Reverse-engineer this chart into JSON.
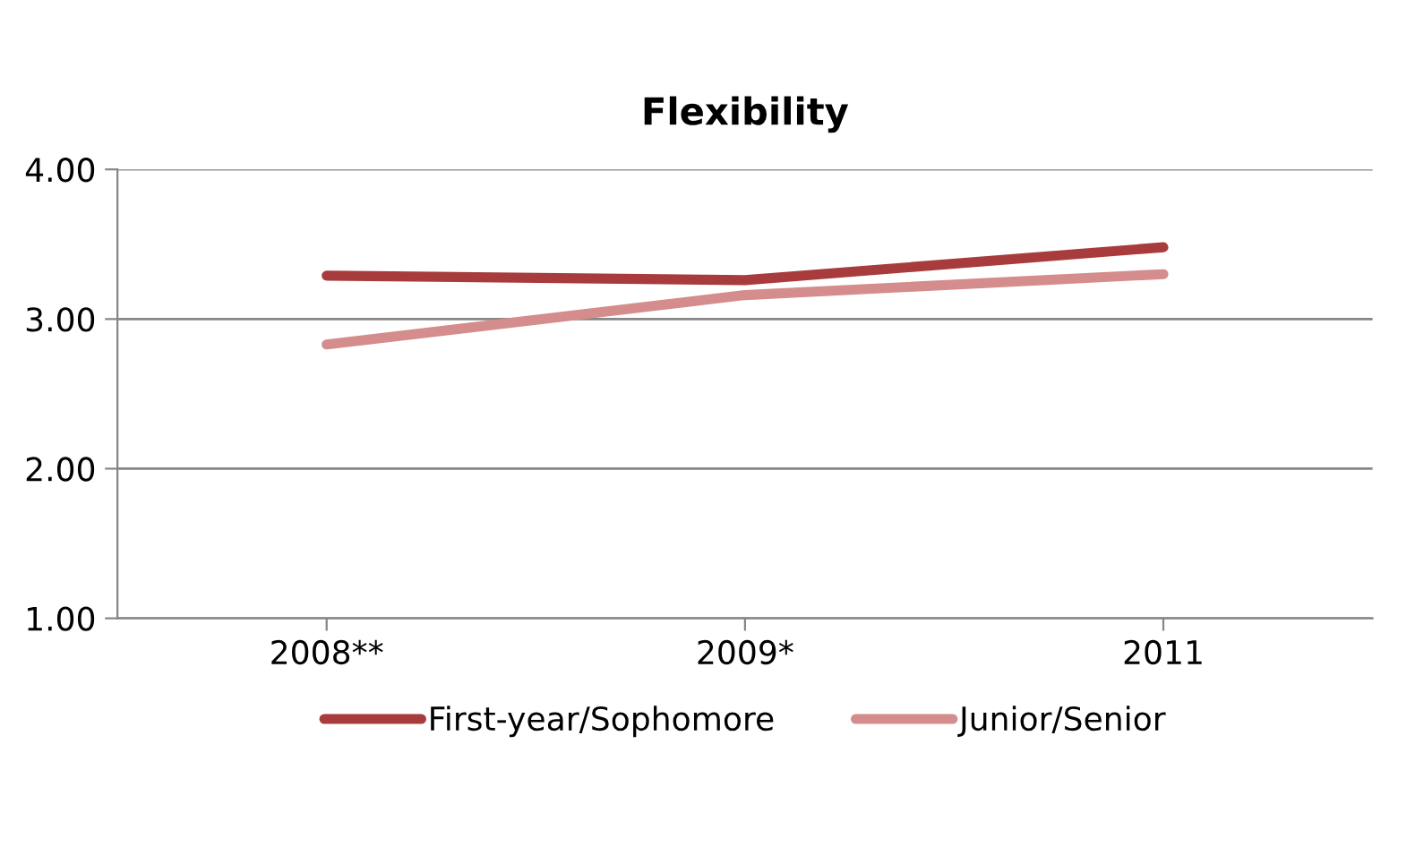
{
  "chart_data": {
    "type": "line",
    "title": "Flexibility",
    "categories": [
      "2008**",
      "2009*",
      "2011"
    ],
    "series": [
      {
        "name": "First-year/Sophomore",
        "color": "#a83c3c",
        "values": [
          3.29,
          3.26,
          3.48
        ]
      },
      {
        "name": "Junior/Senior",
        "color": "#d48c8c",
        "values": [
          2.83,
          3.16,
          3.3
        ]
      }
    ],
    "ylim": [
      1,
      4
    ],
    "yticks": [
      {
        "value": 1,
        "label": "1.00"
      },
      {
        "value": 2,
        "label": "2.00"
      },
      {
        "value": 3,
        "label": "3.00"
      },
      {
        "value": 4,
        "label": "4.00"
      }
    ],
    "grid": "y",
    "legend": "bottom",
    "marker": "none",
    "line_style": "solid"
  }
}
